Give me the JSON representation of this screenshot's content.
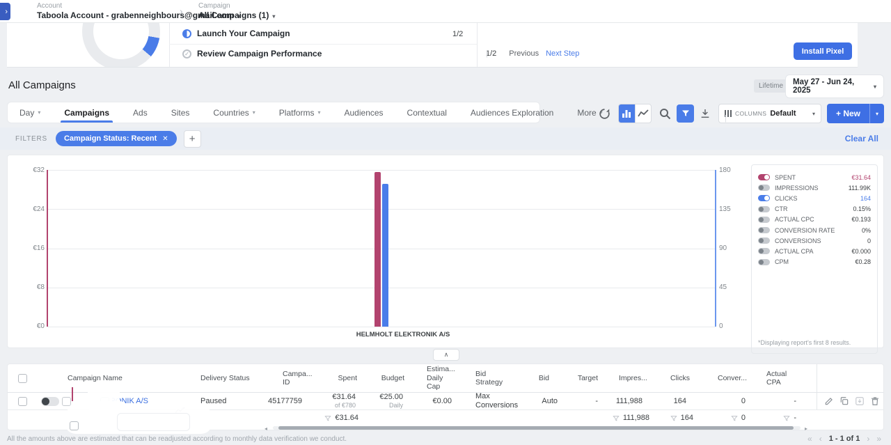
{
  "icons": {
    "caret_down": "▾",
    "chevron_right": "›",
    "collapse_up": "∧",
    "add": "+",
    "close": "✕",
    "scroll_left": "◂",
    "scroll_right": "▸"
  },
  "breadcrumb": {
    "account_label": "Account",
    "account_value": "Taboola Account - grabenneighbours@gmail.com",
    "campaign_label": "Campaign",
    "campaign_value": "All Campaigns (1)"
  },
  "onboarding": {
    "steps": [
      {
        "label": "Launch Your Campaign",
        "progress": "1/2",
        "state": "in-progress"
      },
      {
        "label": "Review Campaign Performance",
        "state": "done"
      }
    ],
    "pager": {
      "progress": "1/2",
      "previous_label": "Previous",
      "next_label": "Next Step"
    },
    "install_pixel_label": "Install Pixel"
  },
  "page_title": "All Campaigns",
  "date_picker": {
    "badge": "Lifetime",
    "range": "May 27 - Jun 24, 2025"
  },
  "tabs": {
    "items": [
      {
        "label": "Day",
        "dropdown": true
      },
      {
        "label": "Campaigns",
        "active": true
      },
      {
        "label": "Ads"
      },
      {
        "label": "Sites"
      },
      {
        "label": "Countries",
        "dropdown": true
      },
      {
        "label": "Platforms",
        "dropdown": true
      },
      {
        "label": "Audiences"
      },
      {
        "label": "Contextual"
      },
      {
        "label": "Audiences Exploration"
      },
      {
        "label": "More",
        "dropdown": true
      }
    ]
  },
  "toolbar": {
    "columns_label": "COLUMNS",
    "columns_value": "Default",
    "new_label": "+ New"
  },
  "filters": {
    "label": "FILTERS",
    "chip": "Campaign Status: Recent",
    "clear_all": "Clear All"
  },
  "chart_data": {
    "type": "bar",
    "categories": [
      "HELMHOLT ELEKTRONIK A/S"
    ],
    "series": [
      {
        "name": "SPENT",
        "values": [
          31.64
        ],
        "color": "#b2436e",
        "axis": "left"
      },
      {
        "name": "CLICKS",
        "values": [
          164
        ],
        "color": "#4a7de9",
        "axis": "right"
      }
    ],
    "left_axis": {
      "labels": [
        "€32",
        "€24",
        "€16",
        "€8",
        "€0"
      ],
      "min": 0,
      "max": 32
    },
    "right_axis": {
      "labels": [
        "180",
        "135",
        "90",
        "45",
        "0"
      ],
      "min": 0,
      "max": 180
    },
    "grid": true,
    "legend_position": "right"
  },
  "legend": {
    "rows": [
      {
        "label": "SPENT",
        "value": "€31.64",
        "on": true,
        "color": "#b2436e"
      },
      {
        "label": "IMPRESSIONS",
        "value": "111.99K",
        "on": false
      },
      {
        "label": "CLICKS",
        "value": "164",
        "on": true,
        "color": "#4a7de9"
      },
      {
        "label": "CTR",
        "value": "0.15%",
        "on": false
      },
      {
        "label": "ACTUAL CPC",
        "value": "€0.193",
        "on": false
      },
      {
        "label": "CONVERSION RATE",
        "value": "0%",
        "on": false
      },
      {
        "label": "CONVERSIONS",
        "value": "0",
        "on": false
      },
      {
        "label": "ACTUAL CPA",
        "value": "€0.000",
        "on": false
      },
      {
        "label": "CPM",
        "value": "€0.28",
        "on": false
      }
    ],
    "footnote": "*Displaying report's first 8 results."
  },
  "table": {
    "columns": [
      "",
      "Campaign Name",
      "Delivery Status",
      "Campa...\nID",
      "Spent",
      "Budget",
      "Estima...\nDaily\nCap",
      "Bid\nStrategy",
      "Bid",
      "Target",
      "Impres...",
      "Clicks",
      "Conver...",
      "Actual\nCPA",
      "",
      ""
    ],
    "row": {
      "campaign_name": "HELMHOLT ELEKTRONIK A/S",
      "delivery_status": "Paused",
      "campaign_id": "45177759",
      "spent": "€31.64",
      "spent_sub": "of €780",
      "budget": "€25.00",
      "budget_sub": "Daily",
      "estimated_daily_cap": "€0.00",
      "bid_strategy": "Max Conversions",
      "bid": "Auto",
      "target": "-",
      "impressions": "111,988",
      "clicks": "164",
      "conversions": "0",
      "actual_cpa": "-"
    },
    "summary": {
      "spent": "€31.64",
      "impressions": "111,988",
      "clicks": "164",
      "conversions": "0",
      "actual_cpa": "-"
    }
  },
  "pagination": {
    "first": "«",
    "prev": "‹",
    "label": "1 - 1 of 1",
    "next": "›",
    "last": "»"
  },
  "footer_note": "All the amounts above are estimated that can be readjusted according to monthly data verification we conduct."
}
